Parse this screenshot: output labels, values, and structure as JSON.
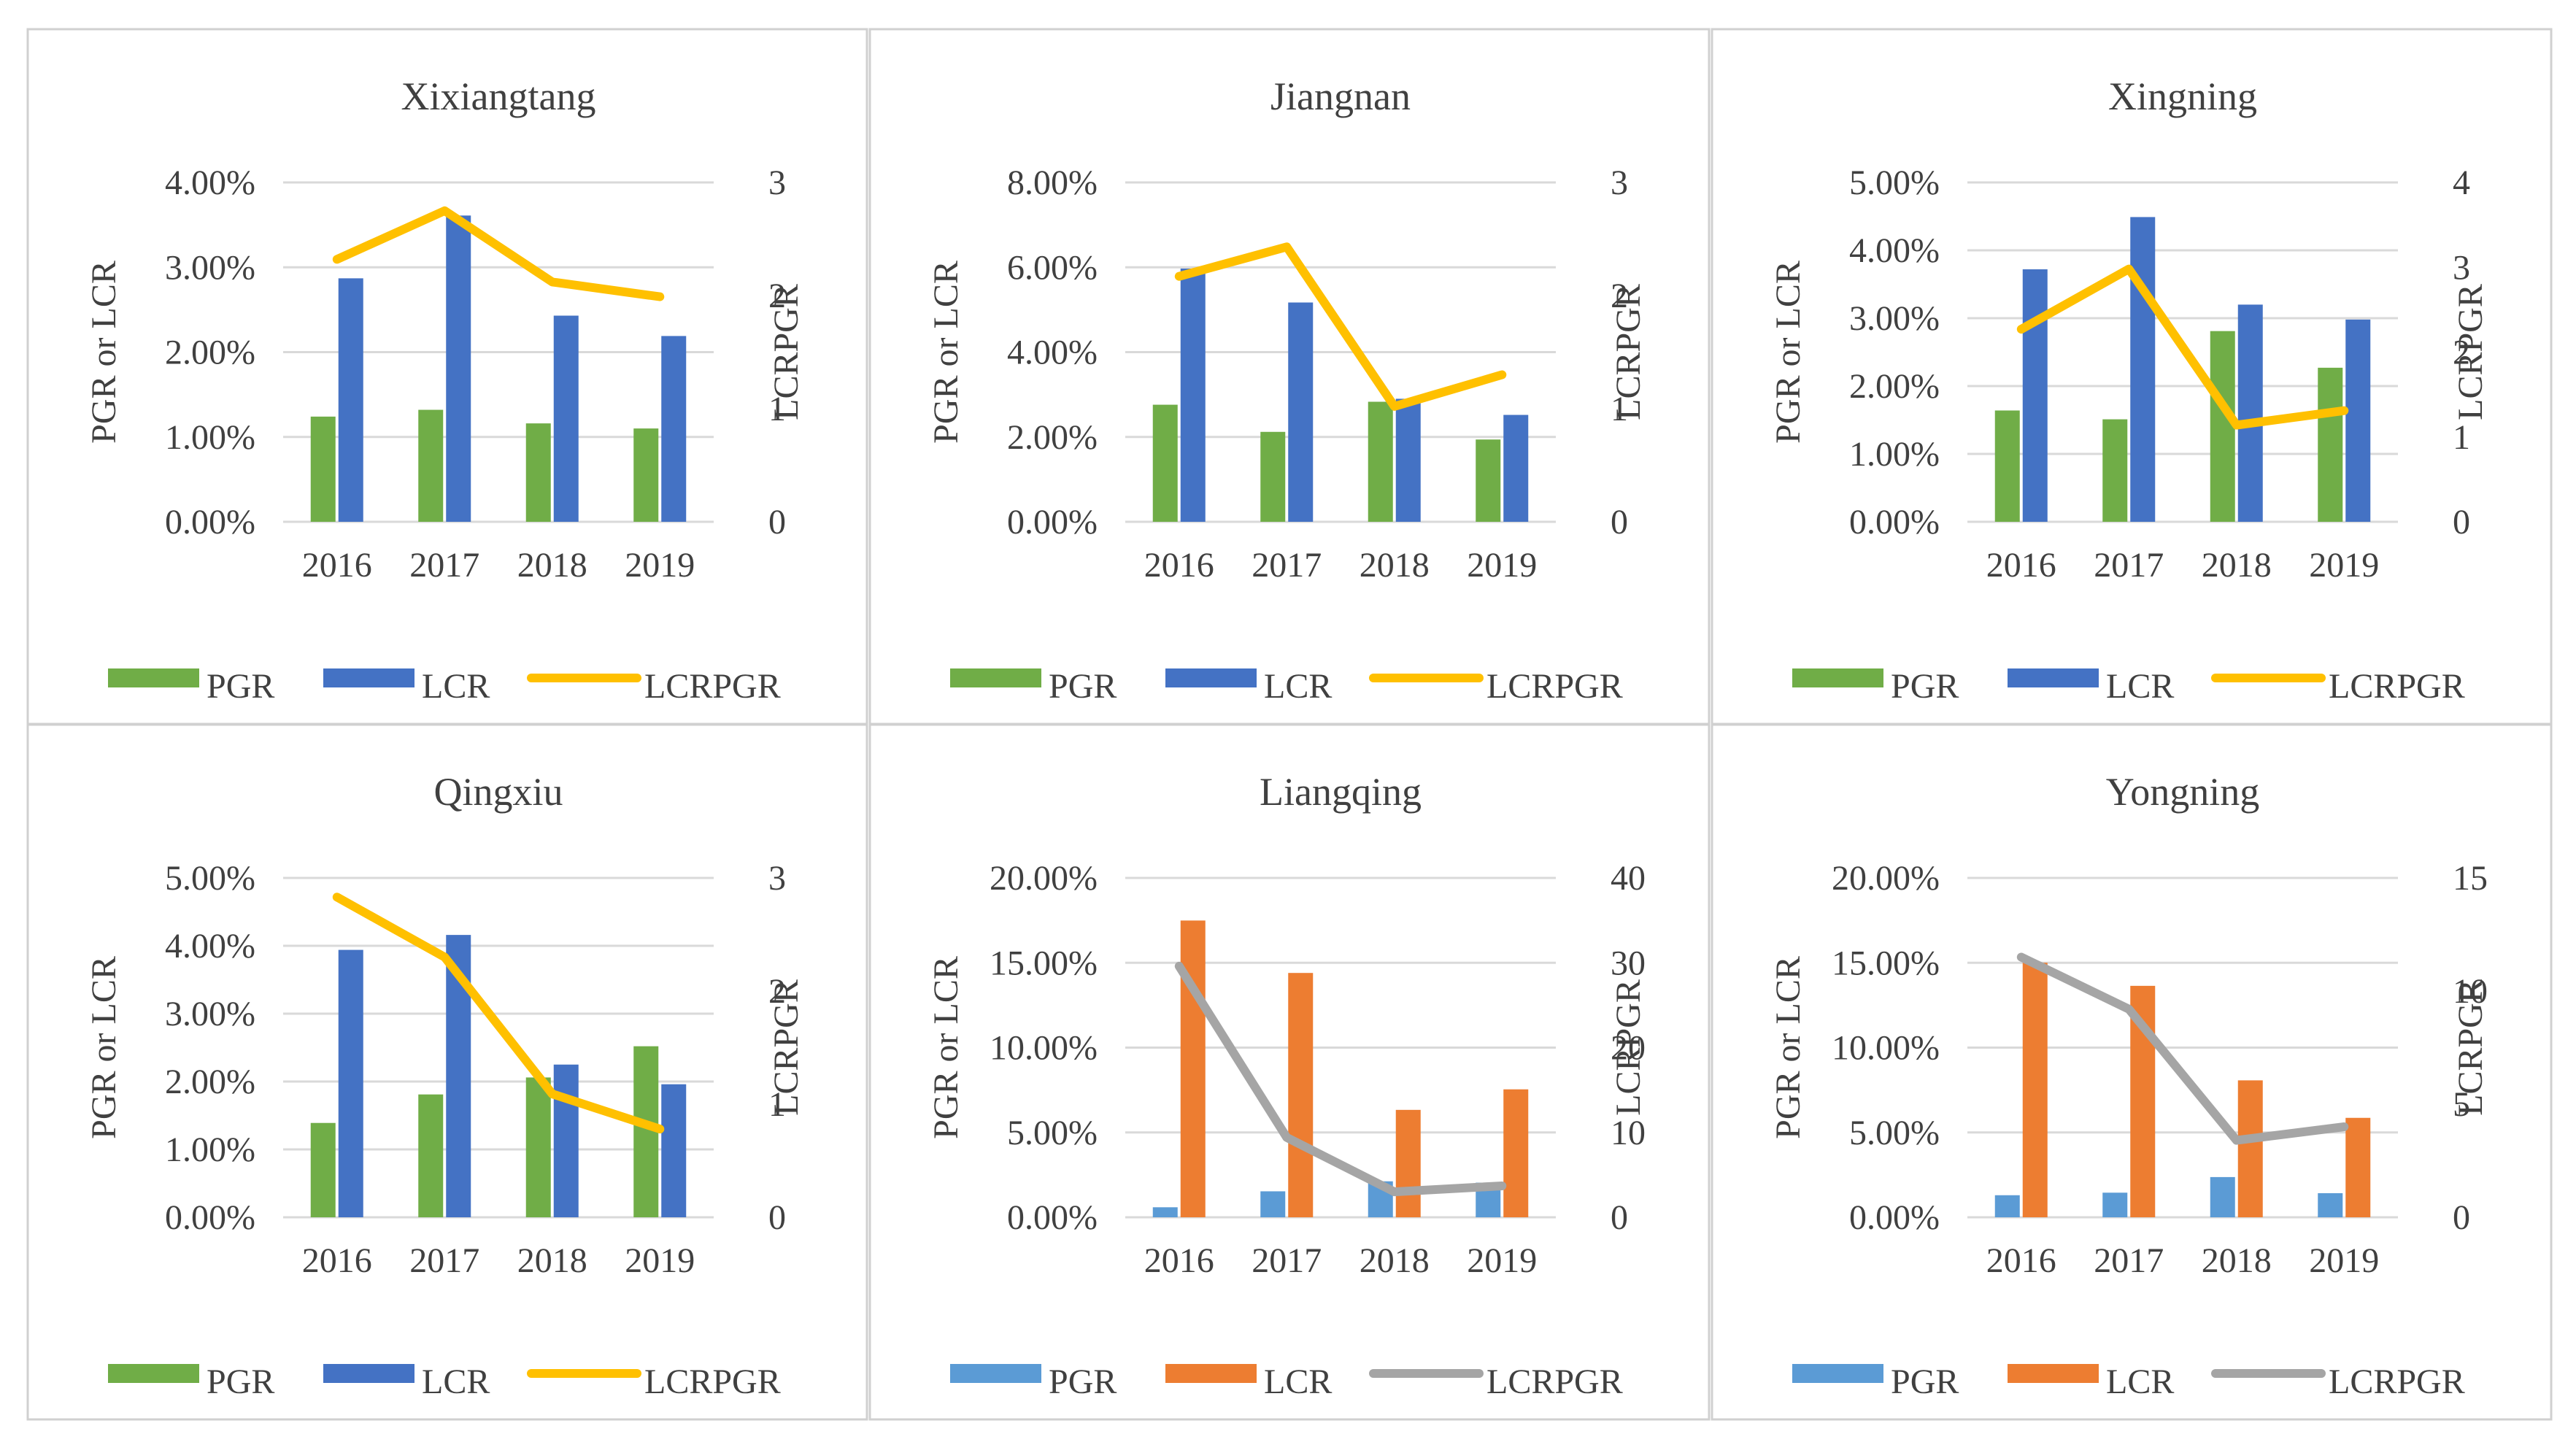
{
  "colors": {
    "green": "#70ad47",
    "blue": "#4472c4",
    "yellow": "#ffc000",
    "light_blue": "#5b9bd5",
    "orange": "#ed7d31",
    "gray": "#a5a5a5",
    "grid": "#d9d9d9",
    "panel_border": "#d0d0d0"
  },
  "chart_data": [
    {
      "type": "bar+line",
      "title": "Xixiangtang",
      "categories": [
        "2016",
        "2017",
        "2018",
        "2019"
      ],
      "ylabel": "PGR or LCR",
      "y2label": "LCRPGR",
      "ylim": [
        0,
        0.04
      ],
      "yticks": [
        "0.00%",
        "1.00%",
        "2.00%",
        "3.00%",
        "4.00%"
      ],
      "y2lim": [
        0,
        3
      ],
      "y2ticks": [
        "0",
        "1",
        "2",
        "3"
      ],
      "bar_colors": [
        "green",
        "blue"
      ],
      "line_color": "yellow",
      "series": [
        {
          "name": "PGR",
          "kind": "bar",
          "values": [
            0.0124,
            0.0132,
            0.0116,
            0.011
          ]
        },
        {
          "name": "LCR",
          "kind": "bar",
          "values": [
            0.0287,
            0.0361,
            0.0243,
            0.0219
          ]
        },
        {
          "name": "LCRPGR",
          "kind": "line",
          "axis": "secondary",
          "values": [
            2.32,
            2.75,
            2.12,
            1.99
          ]
        }
      ],
      "legend": [
        "PGR",
        "LCR",
        "LCRPGR"
      ]
    },
    {
      "type": "bar+line",
      "title": "Jiangnan",
      "categories": [
        "2016",
        "2017",
        "2018",
        "2019"
      ],
      "ylabel": "PGR or LCR",
      "y2label": "LCRPGR",
      "ylim": [
        0,
        0.08
      ],
      "yticks": [
        "0.00%",
        "2.00%",
        "4.00%",
        "6.00%",
        "8.00%"
      ],
      "y2lim": [
        0,
        3
      ],
      "y2ticks": [
        "0",
        "1",
        "2",
        "3"
      ],
      "bar_colors": [
        "green",
        "blue"
      ],
      "line_color": "yellow",
      "series": [
        {
          "name": "PGR",
          "kind": "bar",
          "values": [
            0.0276,
            0.0212,
            0.0283,
            0.0194
          ]
        },
        {
          "name": "LCR",
          "kind": "bar",
          "values": [
            0.0597,
            0.0517,
            0.029,
            0.0252
          ]
        },
        {
          "name": "LCRPGR",
          "kind": "line",
          "axis": "secondary",
          "values": [
            2.17,
            2.43,
            1.02,
            1.3
          ]
        }
      ],
      "legend": [
        "PGR",
        "LCR",
        "LCRPGR"
      ]
    },
    {
      "type": "bar+line",
      "title": "Xingning",
      "categories": [
        "2016",
        "2017",
        "2018",
        "2019"
      ],
      "ylabel": "PGR or LCR",
      "y2label": "LCRPGR",
      "ylim": [
        0,
        0.05
      ],
      "yticks": [
        "0.00%",
        "1.00%",
        "2.00%",
        "3.00%",
        "4.00%",
        "5.00%"
      ],
      "y2lim": [
        0,
        4
      ],
      "y2ticks": [
        "0",
        "1",
        "2",
        "3",
        "4"
      ],
      "bar_colors": [
        "green",
        "blue"
      ],
      "line_color": "yellow",
      "series": [
        {
          "name": "PGR",
          "kind": "bar",
          "values": [
            0.0164,
            0.0151,
            0.0281,
            0.0227
          ]
        },
        {
          "name": "LCR",
          "kind": "bar",
          "values": [
            0.0372,
            0.0449,
            0.032,
            0.0298
          ]
        },
        {
          "name": "LCRPGR",
          "kind": "line",
          "axis": "secondary",
          "values": [
            2.27,
            2.98,
            1.14,
            1.31
          ]
        }
      ],
      "legend": [
        "PGR",
        "LCR",
        "LCRPGR"
      ]
    },
    {
      "type": "bar+line",
      "title": "Qingxiu",
      "categories": [
        "2016",
        "2017",
        "2018",
        "2019"
      ],
      "ylabel": "PGR or LCR",
      "y2label": "LCRPGR",
      "ylim": [
        0,
        0.05
      ],
      "yticks": [
        "0.00%",
        "1.00%",
        "2.00%",
        "3.00%",
        "4.00%",
        "5.00%"
      ],
      "y2lim": [
        0,
        3
      ],
      "y2ticks": [
        "0",
        "1",
        "2",
        "3"
      ],
      "bar_colors": [
        "green",
        "blue"
      ],
      "line_color": "yellow",
      "series": [
        {
          "name": "PGR",
          "kind": "bar",
          "values": [
            0.0139,
            0.0181,
            0.0206,
            0.0252
          ]
        },
        {
          "name": "LCR",
          "kind": "bar",
          "values": [
            0.0394,
            0.0416,
            0.0225,
            0.0196
          ]
        },
        {
          "name": "LCRPGR",
          "kind": "line",
          "axis": "secondary",
          "values": [
            2.83,
            2.3,
            1.09,
            0.78
          ]
        }
      ],
      "legend": [
        "PGR",
        "LCR",
        "LCRPGR"
      ]
    },
    {
      "type": "bar+line",
      "title": "Liangqing",
      "categories": [
        "2016",
        "2017",
        "2018",
        "2019"
      ],
      "ylabel": "PGR or LCR",
      "y2label": "LCRPGR",
      "ylim": [
        0,
        0.2
      ],
      "yticks": [
        "0.00%",
        "5.00%",
        "10.00%",
        "15.00%",
        "20.00%"
      ],
      "y2lim": [
        0,
        40
      ],
      "y2ticks": [
        "0",
        "10",
        "20",
        "30",
        "40"
      ],
      "bar_colors": [
        "light_blue",
        "orange"
      ],
      "line_color": "gray",
      "series": [
        {
          "name": "PGR",
          "kind": "bar",
          "values": [
            0.0059,
            0.0153,
            0.0212,
            0.0204
          ]
        },
        {
          "name": "LCR",
          "kind": "bar",
          "values": [
            0.1749,
            0.144,
            0.0633,
            0.0754
          ]
        },
        {
          "name": "LCRPGR",
          "kind": "line",
          "axis": "secondary",
          "values": [
            29.6,
            9.4,
            3.0,
            3.7
          ]
        }
      ],
      "legend": [
        "PGR",
        "LCR",
        "LCRPGR"
      ]
    },
    {
      "type": "bar+line",
      "title": "Yongning",
      "categories": [
        "2016",
        "2017",
        "2018",
        "2019"
      ],
      "ylabel": "PGR or LCR",
      "y2label": "LCRPGR",
      "ylim": [
        0,
        0.2
      ],
      "yticks": [
        "0.00%",
        "5.00%",
        "10.00%",
        "15.00%",
        "20.00%"
      ],
      "y2lim": [
        0,
        15
      ],
      "y2ticks": [
        "0",
        "5",
        "10",
        "15"
      ],
      "bar_colors": [
        "light_blue",
        "orange"
      ],
      "line_color": "gray",
      "series": [
        {
          "name": "PGR",
          "kind": "bar",
          "values": [
            0.013,
            0.0145,
            0.0237,
            0.0142
          ]
        },
        {
          "name": "LCR",
          "kind": "bar",
          "values": [
            0.15,
            0.1364,
            0.0807,
            0.0586
          ]
        },
        {
          "name": "LCRPGR",
          "kind": "line",
          "axis": "secondary",
          "values": [
            11.5,
            9.2,
            3.4,
            4.0
          ]
        }
      ],
      "legend": [
        "PGR",
        "LCR",
        "LCRPGR"
      ]
    }
  ]
}
